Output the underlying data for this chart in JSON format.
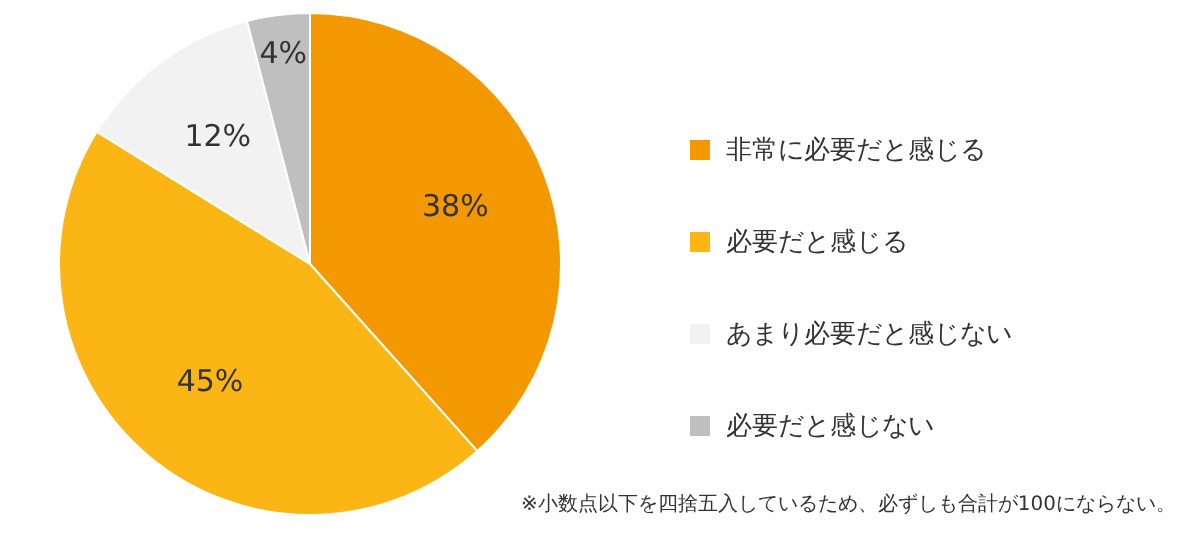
{
  "chart_data": {
    "type": "pie",
    "categories": [
      "非常に必要だと感じる",
      "必要だと感じる",
      "あまり必要だと感じない",
      "必要だと感じない"
    ],
    "values": [
      38,
      45,
      12,
      4
    ],
    "colors": [
      "#f39800",
      "#fbb616",
      "#f2f2f2",
      "#bfbfbf"
    ],
    "value_labels": [
      "38%",
      "45%",
      "12%",
      "4%"
    ],
    "legend": "right",
    "annotations": [
      "※小数点以下を四捨五入しているため、必ずしも合計が100にならない。"
    ]
  }
}
